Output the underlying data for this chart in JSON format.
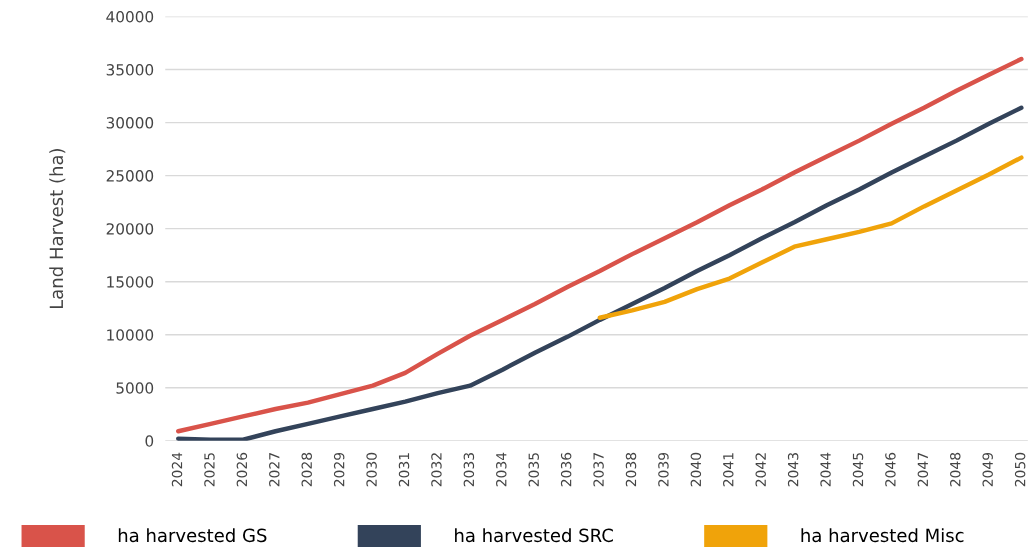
{
  "chart_data": {
    "type": "line",
    "ylabel": "Land Harvest (ha)",
    "categories": [
      "2024",
      "2025",
      "2026",
      "2027",
      "2028",
      "2029",
      "2030",
      "2031",
      "2032",
      "2033",
      "2034",
      "2035",
      "2036",
      "2037",
      "2038",
      "2039",
      "2040",
      "2041",
      "2042",
      "2043",
      "2044",
      "2045",
      "2046",
      "2047",
      "2048",
      "2049",
      "2050"
    ],
    "series": [
      {
        "name": "ha harvested GS",
        "color": "#d9534a",
        "values": [
          900,
          1600,
          2300,
          3000,
          3600,
          4400,
          5200,
          6400,
          8200,
          9900,
          11400,
          12900,
          14500,
          16000,
          17600,
          19100,
          20600,
          22200,
          23700,
          25300,
          26800,
          28300,
          29900,
          31400,
          33000,
          34500,
          36000
        ]
      },
      {
        "name": "ha harvested SRC",
        "color": "#33435a",
        "values": [
          200,
          100,
          100,
          900,
          1600,
          2300,
          3000,
          3700,
          4500,
          5200,
          6700,
          8300,
          9800,
          11400,
          12900,
          14400,
          16000,
          17500,
          19100,
          20600,
          22200,
          23700,
          25300,
          26800,
          28300,
          29900,
          31400
        ]
      },
      {
        "name": "ha harvested Misc",
        "color": "#f0a30a",
        "values": [
          null,
          null,
          null,
          null,
          null,
          null,
          null,
          null,
          null,
          null,
          null,
          null,
          null,
          11600,
          12300,
          13100,
          14300,
          15300,
          16800,
          18300,
          19000,
          19700,
          20500,
          22100,
          23600,
          25100,
          26700
        ]
      }
    ],
    "ylim": [
      0,
      40000
    ],
    "yticks": [
      0,
      5000,
      10000,
      15000,
      20000,
      25000,
      30000,
      35000,
      40000
    ],
    "grid": "y",
    "legend": "bottom",
    "marker": "none",
    "line_style": "solid"
  }
}
